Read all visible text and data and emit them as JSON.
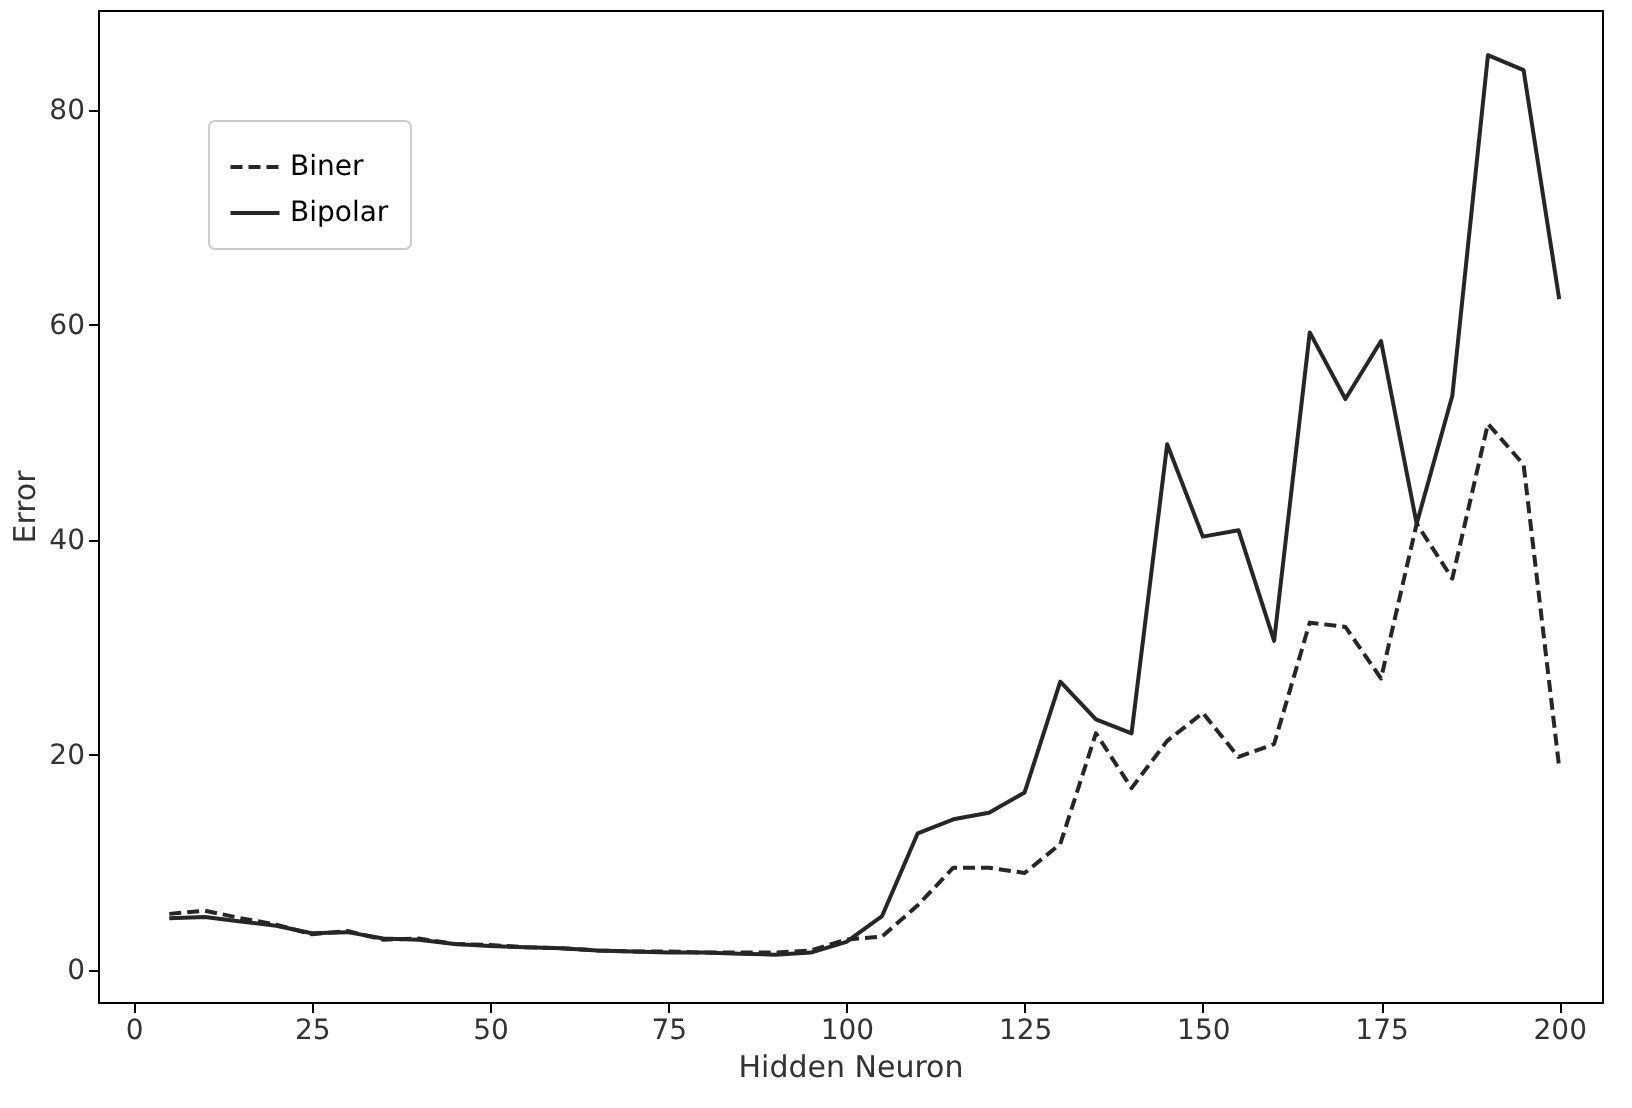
{
  "chart_data": {
    "type": "line",
    "xlabel": "Hidden Neuron",
    "ylabel": "Error",
    "x": [
      5,
      10,
      15,
      20,
      25,
      30,
      35,
      40,
      45,
      50,
      55,
      60,
      65,
      70,
      75,
      80,
      85,
      90,
      95,
      100,
      105,
      110,
      115,
      120,
      125,
      130,
      135,
      140,
      145,
      150,
      155,
      160,
      165,
      170,
      175,
      180,
      185,
      190,
      195,
      200
    ],
    "series": [
      {
        "name": "Biner",
        "color": "#262626",
        "line_style": "dashed",
        "values": [
          5.2,
          5.5,
          4.8,
          4.2,
          3.3,
          3.6,
          2.8,
          2.9,
          2.4,
          2.3,
          2.1,
          2.0,
          1.8,
          1.7,
          1.7,
          1.6,
          1.6,
          1.6,
          1.8,
          2.8,
          3.1,
          6.0,
          9.5,
          9.5,
          9.0,
          11.7,
          22.0,
          16.9,
          21.3,
          23.9,
          19.8,
          21.0,
          32.3,
          31.9,
          27.1,
          41.5,
          36.4,
          50.8,
          47.0,
          18.8
        ]
      },
      {
        "name": "Bipolar",
        "color": "#262626",
        "line_style": "solid",
        "values": [
          4.8,
          4.9,
          4.5,
          4.1,
          3.4,
          3.5,
          2.9,
          2.8,
          2.4,
          2.2,
          2.1,
          2.0,
          1.8,
          1.7,
          1.6,
          1.6,
          1.5,
          1.4,
          1.6,
          2.6,
          5.0,
          12.7,
          14.0,
          14.6,
          16.5,
          26.8,
          23.3,
          22.0,
          48.9,
          40.3,
          40.9,
          30.6,
          59.3,
          53.1,
          58.5,
          41.5,
          53.4,
          85.1,
          83.7,
          62.4
        ]
      }
    ],
    "xlim": [
      -5,
      206
    ],
    "ylim": [
      -3,
      89.3
    ],
    "xticks": [
      0,
      25,
      50,
      75,
      100,
      125,
      150,
      175,
      200
    ],
    "yticks": [
      0,
      20,
      40,
      60,
      80
    ],
    "grid": false,
    "legend": "top left",
    "marker": "none"
  }
}
